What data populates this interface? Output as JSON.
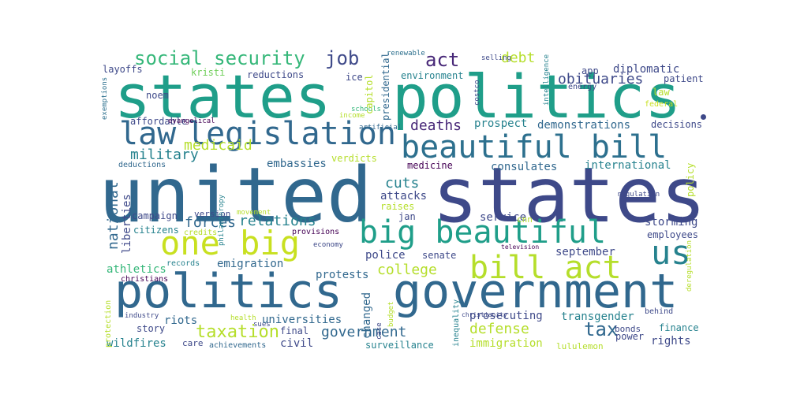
{
  "palette": {
    "darkpurple": "#482878",
    "indigo": "#3e4989",
    "blue": "#31688e",
    "steel": "#2d708e",
    "teal": "#26828e",
    "cyan": "#1f9e89",
    "green": "#35b779",
    "lime": "#6ece58",
    "yellowgreen": "#b5de2b",
    "yellow": "#c8e020",
    "deep": "#440154"
  },
  "dot_color": "#3e4989",
  "words": [
    {
      "text": "states",
      "color": "#1f9e89"
    },
    {
      "text": "politics",
      "color": "#1f9e89"
    },
    {
      "text": "united",
      "color": "#31688e"
    },
    {
      "text": "states",
      "color": "#3e4989"
    },
    {
      "text": "politics",
      "color": "#31688e"
    },
    {
      "text": "government",
      "color": "#31688e"
    },
    {
      "text": "law",
      "color": "#31688e"
    },
    {
      "text": "legislation",
      "color": "#31688e"
    },
    {
      "text": "beautiful bill",
      "color": "#2d708e"
    },
    {
      "text": "big beautiful",
      "color": "#1f9e89"
    },
    {
      "text": "one big",
      "color": "#c8e020"
    },
    {
      "text": "bill act",
      "color": "#b5de2b"
    },
    {
      "text": "us",
      "color": "#26828e"
    },
    {
      "text": "social security",
      "color": "#35b779"
    },
    {
      "text": "job",
      "color": "#3e4989"
    },
    {
      "text": "act",
      "color": "#482878"
    },
    {
      "text": "debt",
      "color": "#b5de2b"
    },
    {
      "text": "obituaries",
      "color": "#3e4989"
    },
    {
      "text": "patient",
      "color": "#3e4989"
    },
    {
      "text": "diplomatic",
      "color": "#3e4989"
    },
    {
      "text": "app",
      "color": "#3e4989"
    },
    {
      "text": "renewable",
      "color": "#2d708e"
    },
    {
      "text": "selling",
      "color": "#3e4989"
    },
    {
      "text": "layoffs",
      "color": "#3e4989"
    },
    {
      "text": "kristi",
      "color": "#6ece58"
    },
    {
      "text": "reductions",
      "color": "#3e4989"
    },
    {
      "text": "ice",
      "color": "#3e4989"
    },
    {
      "text": "environment",
      "color": "#26828e"
    },
    {
      "text": "energy",
      "color": "#3e4989"
    },
    {
      "text": "law",
      "color": "#b5de2b"
    },
    {
      "text": "federal",
      "color": "#c8e020"
    },
    {
      "text": "noem",
      "color": "#3e4989"
    },
    {
      "text": "affordable",
      "color": "#3e4989"
    },
    {
      "text": "evangelical",
      "color": "#440154"
    },
    {
      "text": "income",
      "color": "#b5de2b"
    },
    {
      "text": "artificial",
      "color": "#31688e"
    },
    {
      "text": "schools",
      "color": "#35b779"
    },
    {
      "text": "deaths",
      "color": "#482878"
    },
    {
      "text": "prospect",
      "color": "#26828e"
    },
    {
      "text": "demonstrations",
      "color": "#31688e"
    },
    {
      "text": "decisions",
      "color": "#3e4989"
    },
    {
      "text": "military",
      "color": "#26828e"
    },
    {
      "text": "medicaid",
      "color": "#b5de2b"
    },
    {
      "text": "verdicts",
      "color": "#b5de2b"
    },
    {
      "text": "embassies",
      "color": "#31688e"
    },
    {
      "text": "deductions",
      "color": "#31688e"
    },
    {
      "text": "medicine",
      "color": "#440154"
    },
    {
      "text": "consulates",
      "color": "#31688e"
    },
    {
      "text": "international",
      "color": "#26828e"
    },
    {
      "text": "cuts",
      "color": "#26828e"
    },
    {
      "text": "attacks",
      "color": "#3e4989"
    },
    {
      "text": "raises",
      "color": "#b5de2b"
    },
    {
      "text": "jan",
      "color": "#3e4989"
    },
    {
      "text": "regulation",
      "color": "#3e4989"
    },
    {
      "text": "campaign",
      "color": "#3e4989"
    },
    {
      "text": "version",
      "color": "#3e4989"
    },
    {
      "text": "movement",
      "color": "#b5de2b"
    },
    {
      "text": "forces",
      "color": "#31688e"
    },
    {
      "text": "relations",
      "color": "#26828e"
    },
    {
      "text": "service",
      "color": "#3e4989"
    },
    {
      "text": "cnn",
      "color": "#b5de2b"
    },
    {
      "text": "storming",
      "color": "#3e4989"
    },
    {
      "text": "citizens",
      "color": "#26828e"
    },
    {
      "text": "credits",
      "color": "#b5de2b"
    },
    {
      "text": "provisions",
      "color": "#440154"
    },
    {
      "text": "employees",
      "color": "#3e4989"
    },
    {
      "text": "records",
      "color": "#26828e"
    },
    {
      "text": "economy",
      "color": "#3e4989"
    },
    {
      "text": "police",
      "color": "#3e4989"
    },
    {
      "text": "senate",
      "color": "#3e4989"
    },
    {
      "text": "television",
      "color": "#440154"
    },
    {
      "text": "september",
      "color": "#3e4989"
    },
    {
      "text": "athletics",
      "color": "#35b779"
    },
    {
      "text": "emigration",
      "color": "#31688e"
    },
    {
      "text": "christians",
      "color": "#440154"
    },
    {
      "text": "college",
      "color": "#b5de2b"
    },
    {
      "text": "protests",
      "color": "#31688e"
    },
    {
      "text": "behind",
      "color": "#3e4989"
    },
    {
      "text": "industry",
      "color": "#3e4989"
    },
    {
      "text": "riots",
      "color": "#31688e"
    },
    {
      "text": "story",
      "color": "#3e4989"
    },
    {
      "text": "health",
      "color": "#b5de2b"
    },
    {
      "text": "sues",
      "color": "#3e4989"
    },
    {
      "text": "universities",
      "color": "#31688e"
    },
    {
      "text": "christianity",
      "color": "#3e4989"
    },
    {
      "text": "prosecuting",
      "color": "#3e4989"
    },
    {
      "text": "transgender",
      "color": "#26828e"
    },
    {
      "text": "tax",
      "color": "#31688e"
    },
    {
      "text": "bonds",
      "color": "#3e4989"
    },
    {
      "text": "finance",
      "color": "#26828e"
    },
    {
      "text": "wildfires",
      "color": "#26828e"
    },
    {
      "text": "care",
      "color": "#3e4989"
    },
    {
      "text": "achievements",
      "color": "#31688e"
    },
    {
      "text": "final",
      "color": "#3e4989"
    },
    {
      "text": "civil",
      "color": "#3e4989"
    },
    {
      "text": "government",
      "color": "#31688e"
    },
    {
      "text": "surveillance",
      "color": "#26828e"
    },
    {
      "text": "defense",
      "color": "#b5de2b"
    },
    {
      "text": "immigration",
      "color": "#b5de2b"
    },
    {
      "text": "power",
      "color": "#3e4989"
    },
    {
      "text": "rights",
      "color": "#3e4989"
    },
    {
      "text": "lululemon",
      "color": "#b5de2b"
    },
    {
      "text": "taxation",
      "color": "#b5de2b"
    },
    {
      "text": "exemptions",
      "color": "#2d708e"
    },
    {
      "text": "presidential",
      "color": "#31688e"
    },
    {
      "text": "capitol",
      "color": "#b5de2b"
    },
    {
      "text": "costco",
      "color": "#3e4989"
    },
    {
      "text": "intelligence",
      "color": "#26828e"
    },
    {
      "text": "philanthropy",
      "color": "#26828e"
    },
    {
      "text": "national",
      "color": "#31688e"
    },
    {
      "text": "liberties",
      "color": "#3e4989"
    },
    {
      "text": "policy",
      "color": "#b5de2b"
    },
    {
      "text": "deregulation",
      "color": "#b5de2b"
    },
    {
      "text": "protection",
      "color": "#b5de2b"
    },
    {
      "text": "changed",
      "color": "#31688e"
    },
    {
      "text": "case",
      "color": "#3e4989"
    },
    {
      "text": "budget",
      "color": "#b5de2b"
    },
    {
      "text": "inequality",
      "color": "#26828e"
    }
  ]
}
